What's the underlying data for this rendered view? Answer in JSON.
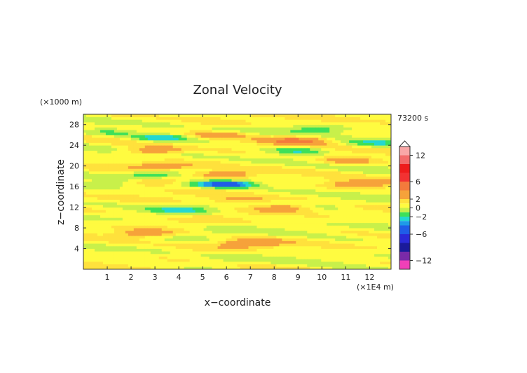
{
  "chart_data": {
    "type": "heatmap",
    "title": "Zonal Velocity",
    "time_label": "73200 s",
    "xlabel": "x−coordinate",
    "ylabel": "z−coordinate",
    "x_unit": "(×1E4 m)",
    "y_unit": "(×1000 m)",
    "xlim": [
      0,
      12.9
    ],
    "ylim": [
      0,
      30
    ],
    "x_ticks": [
      1,
      2,
      3,
      4,
      5,
      6,
      7,
      8,
      9,
      10,
      11,
      12
    ],
    "y_ticks": [
      4,
      8,
      12,
      16,
      20,
      24,
      28
    ],
    "colorbar": {
      "range": [
        -14,
        14
      ],
      "ticks": [
        12,
        6,
        2,
        0,
        -2,
        -6,
        -12
      ],
      "tick_labels": [
        "12",
        "6",
        "2",
        "0",
        "−2",
        "−6",
        "−12"
      ],
      "levels": [
        {
          "min": 12,
          "max": 14,
          "color": "#f9a7a7"
        },
        {
          "min": 10,
          "max": 12,
          "color": "#f36b6b"
        },
        {
          "min": 8,
          "max": 10,
          "color": "#ee1c1c"
        },
        {
          "min": 6,
          "max": 8,
          "color": "#f23232"
        },
        {
          "min": 4,
          "max": 6,
          "color": "#f47a3c"
        },
        {
          "min": 2,
          "max": 4,
          "color": "#f6a23a"
        },
        {
          "min": 1,
          "max": 2,
          "color": "#ffe13c"
        },
        {
          "min": 0,
          "max": 1,
          "color": "#fffb40"
        },
        {
          "min": -1,
          "max": 0,
          "color": "#c8f04a"
        },
        {
          "min": -2,
          "max": -1,
          "color": "#3de05a"
        },
        {
          "min": -3,
          "max": -2,
          "color": "#23d8d0"
        },
        {
          "min": -4,
          "max": -3,
          "color": "#1e9be8"
        },
        {
          "min": -6,
          "max": -4,
          "color": "#1f5de8"
        },
        {
          "min": -8,
          "max": -6,
          "color": "#2a2ad8"
        },
        {
          "min": -10,
          "max": -8,
          "color": "#1a1a9a"
        },
        {
          "min": -12,
          "max": -10,
          "color": "#7a2aa8"
        },
        {
          "min": -14,
          "max": -12,
          "color": "#f040b8"
        }
      ]
    },
    "background_value": 0.5,
    "features": [
      {
        "x": 3.0,
        "z": 23.0,
        "value": 3.5
      },
      {
        "x": 3.3,
        "z": 25.5,
        "value": -3.5
      },
      {
        "x": 3.0,
        "z": 18.5,
        "value": -3.0
      },
      {
        "x": 3.2,
        "z": 20.0,
        "value": 2.5
      },
      {
        "x": 3.2,
        "z": 17.0,
        "value": 3.0
      },
      {
        "x": 6.0,
        "z": 16.5,
        "value": -6.0
      },
      {
        "x": 6.0,
        "z": 18.5,
        "value": 3.5
      },
      {
        "x": 6.5,
        "z": 13.5,
        "value": 3.0
      },
      {
        "x": 9.0,
        "z": 25.0,
        "value": 4.0
      },
      {
        "x": 9.0,
        "z": 23.0,
        "value": -2.5
      },
      {
        "x": 9.8,
        "z": 27.0,
        "value": -2.0
      },
      {
        "x": 7.0,
        "z": 5.0,
        "value": 3.0
      },
      {
        "x": 8.5,
        "z": 12.0,
        "value": 3.0
      },
      {
        "x": 11.5,
        "z": 16.5,
        "value": 3.0
      },
      {
        "x": 11.0,
        "z": 21.0,
        "value": 2.5
      },
      {
        "x": 12.3,
        "z": 24.5,
        "value": -2.0
      },
      {
        "x": 5.8,
        "z": 26.0,
        "value": 3.0
      },
      {
        "x": 0.7,
        "z": 16.5,
        "value": -1.5
      },
      {
        "x": 1.0,
        "z": 26.5,
        "value": -1.5
      },
      {
        "x": 4.0,
        "z": 11.5,
        "value": -2.0
      },
      {
        "x": 2.5,
        "z": 7.0,
        "value": 3.0
      },
      {
        "x": 10.0,
        "z": 12.5,
        "value": -1.5
      }
    ]
  }
}
